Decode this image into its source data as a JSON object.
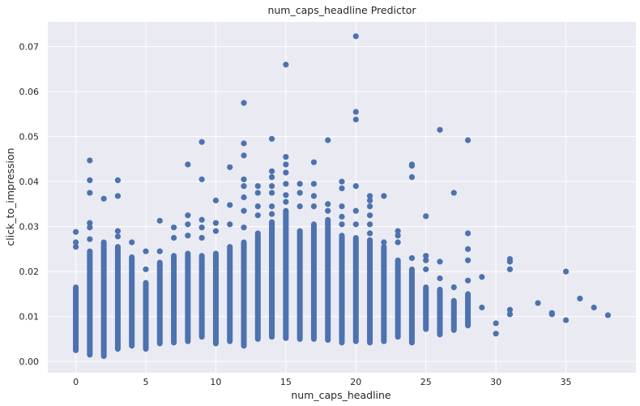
{
  "chart_data": {
    "type": "scatter",
    "title": "num_caps_headline Predictor",
    "xlabel": "num_caps_headline",
    "ylabel": "click_to_impression",
    "xlim": [
      -2,
      40
    ],
    "ylim": [
      -0.0025,
      0.0755
    ],
    "xticks": [
      "0",
      "5",
      "10",
      "15",
      "20",
      "25",
      "30",
      "35"
    ],
    "yticks": [
      "0.00",
      "0.01",
      "0.02",
      "0.03",
      "0.04",
      "0.05",
      "0.06",
      "0.07"
    ],
    "grid": true,
    "point_color": "#4c72b0",
    "background_color": "#eaeaf2",
    "columns": [
      {
        "x": 0,
        "y_min": 0.0025,
        "y_max": 0.0165,
        "extra": [
          0.0255,
          0.0265,
          0.0288
        ]
      },
      {
        "x": 1,
        "y_min": 0.0015,
        "y_max": 0.0245,
        "extra": [
          0.0272,
          0.0298,
          0.0308,
          0.0375,
          0.0403,
          0.0447
        ]
      },
      {
        "x": 2,
        "y_min": 0.0012,
        "y_max": 0.0265,
        "extra": [
          0.0362
        ]
      },
      {
        "x": 3,
        "y_min": 0.0028,
        "y_max": 0.0255,
        "extra": [
          0.0278,
          0.029,
          0.0368,
          0.0403
        ]
      },
      {
        "x": 4,
        "y_min": 0.0035,
        "y_max": 0.0232,
        "extra": [
          0.0265
        ]
      },
      {
        "x": 5,
        "y_min": 0.0028,
        "y_max": 0.0175,
        "extra": [
          0.0205,
          0.0245
        ]
      },
      {
        "x": 6,
        "y_min": 0.004,
        "y_max": 0.022,
        "extra": [
          0.0245,
          0.0313
        ]
      },
      {
        "x": 7,
        "y_min": 0.0042,
        "y_max": 0.0235,
        "extra": [
          0.0275,
          0.0298
        ]
      },
      {
        "x": 8,
        "y_min": 0.0045,
        "y_max": 0.024,
        "extra": [
          0.028,
          0.0305,
          0.0325,
          0.0438
        ]
      },
      {
        "x": 9,
        "y_min": 0.0055,
        "y_max": 0.0235,
        "extra": [
          0.0275,
          0.0298,
          0.0315,
          0.0405,
          0.0488
        ]
      },
      {
        "x": 10,
        "y_min": 0.004,
        "y_max": 0.024,
        "extra": [
          0.029,
          0.0308,
          0.0358
        ]
      },
      {
        "x": 11,
        "y_min": 0.0045,
        "y_max": 0.0255,
        "extra": [
          0.0305,
          0.0348,
          0.0432
        ]
      },
      {
        "x": 12,
        "y_min": 0.0035,
        "y_max": 0.0265,
        "extra": [
          0.0298,
          0.0335,
          0.0365,
          0.039,
          0.0405,
          0.0458,
          0.0485,
          0.0575
        ]
      },
      {
        "x": 13,
        "y_min": 0.005,
        "y_max": 0.0285,
        "extra": [
          0.0325,
          0.0345,
          0.0375,
          0.039
        ]
      },
      {
        "x": 14,
        "y_min": 0.0055,
        "y_max": 0.031,
        "extra": [
          0.0328,
          0.0345,
          0.0375,
          0.039,
          0.041,
          0.0423,
          0.0495
        ]
      },
      {
        "x": 15,
        "y_min": 0.0052,
        "y_max": 0.0335,
        "extra": [
          0.0355,
          0.037,
          0.0395,
          0.042,
          0.0438,
          0.0455,
          0.066
        ]
      },
      {
        "x": 16,
        "y_min": 0.005,
        "y_max": 0.029,
        "extra": [
          0.0345,
          0.0375,
          0.0395
        ]
      },
      {
        "x": 17,
        "y_min": 0.005,
        "y_max": 0.0305,
        "extra": [
          0.0345,
          0.0368,
          0.0395,
          0.0443
        ]
      },
      {
        "x": 18,
        "y_min": 0.0048,
        "y_max": 0.0315,
        "extra": [
          0.0335,
          0.035,
          0.0492
        ]
      },
      {
        "x": 19,
        "y_min": 0.0042,
        "y_max": 0.028,
        "extra": [
          0.0305,
          0.0322,
          0.0345,
          0.0385,
          0.04
        ]
      },
      {
        "x": 20,
        "y_min": 0.0045,
        "y_max": 0.0275,
        "extra": [
          0.0305,
          0.0335,
          0.039,
          0.0538,
          0.0555,
          0.0723
        ]
      },
      {
        "x": 21,
        "y_min": 0.0042,
        "y_max": 0.027,
        "extra": [
          0.0285,
          0.0305,
          0.0325,
          0.0345,
          0.0358,
          0.0368
        ]
      },
      {
        "x": 22,
        "y_min": 0.0045,
        "y_max": 0.0255,
        "extra": [
          0.0265,
          0.0368
        ]
      },
      {
        "x": 23,
        "y_min": 0.0055,
        "y_max": 0.0225,
        "extra": [
          0.0265,
          0.028,
          0.029
        ]
      },
      {
        "x": 24,
        "y_min": 0.0042,
        "y_max": 0.0205,
        "extra": [
          0.023,
          0.041,
          0.0435,
          0.0438
        ]
      },
      {
        "x": 25,
        "y_min": 0.0072,
        "y_max": 0.0165,
        "extra": [
          0.0205,
          0.0225,
          0.0235,
          0.0323
        ]
      },
      {
        "x": 26,
        "y_min": 0.006,
        "y_max": 0.016,
        "extra": [
          0.0185,
          0.0222,
          0.0515
        ]
      },
      {
        "x": 27,
        "y_min": 0.007,
        "y_max": 0.0135,
        "extra": [
          0.0165,
          0.0375
        ]
      },
      {
        "x": 28,
        "y_min": 0.008,
        "y_max": 0.015,
        "extra": [
          0.018,
          0.0225,
          0.025,
          0.0285,
          0.0492
        ]
      },
      {
        "x": 29,
        "y_min": 0.012,
        "y_max": 0.012,
        "extra": [
          0.0188
        ]
      },
      {
        "x": 30,
        "y_min": 0.0062,
        "y_max": 0.0062,
        "extra": [
          0.0085
        ]
      },
      {
        "x": 31,
        "y_min": 0.0105,
        "y_max": 0.0105,
        "extra": [
          0.0115,
          0.0205,
          0.0222,
          0.0228
        ]
      },
      {
        "x": 33,
        "y_min": 0.013,
        "y_max": 0.013,
        "extra": []
      },
      {
        "x": 34,
        "y_min": 0.0105,
        "y_max": 0.0105,
        "extra": [
          0.0108
        ]
      },
      {
        "x": 35,
        "y_min": 0.0092,
        "y_max": 0.0092,
        "extra": [
          0.02
        ]
      },
      {
        "x": 36,
        "y_min": 0.014,
        "y_max": 0.014,
        "extra": []
      },
      {
        "x": 37,
        "y_min": 0.012,
        "y_max": 0.012,
        "extra": []
      },
      {
        "x": 38,
        "y_min": 0.0103,
        "y_max": 0.0103,
        "extra": []
      }
    ]
  }
}
